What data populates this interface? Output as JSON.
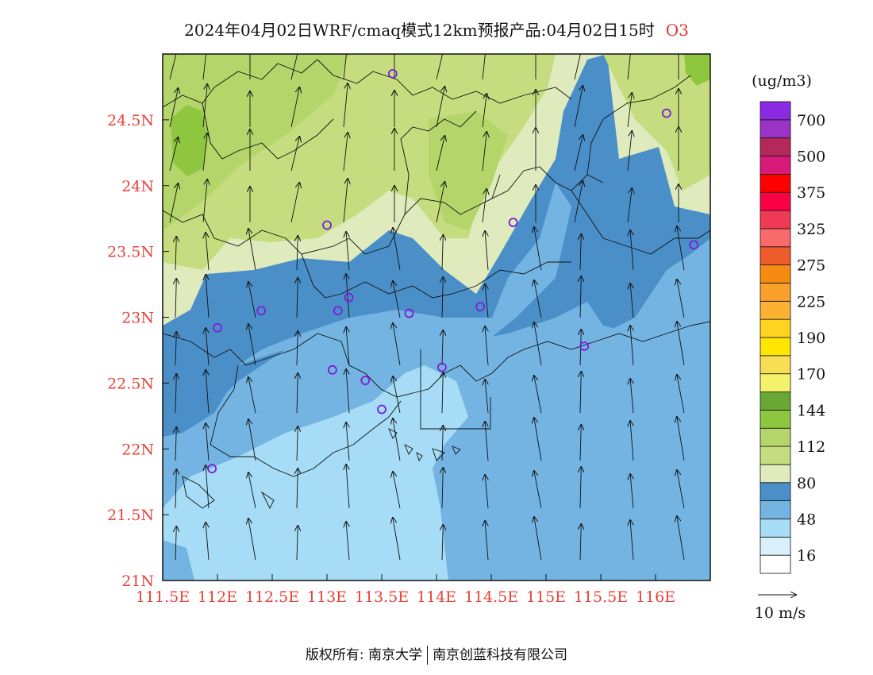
{
  "title": {
    "text": "2024年04月02日WRF/cmaq模式12km预报产品:04月02日15时",
    "species": "O3"
  },
  "axes": {
    "lon_labels": [
      "111.5E",
      "112E",
      "112.5E",
      "113E",
      "113.5E",
      "114E",
      "114.5E",
      "115E",
      "115.5E",
      "116E"
    ],
    "lat_labels": [
      "21N",
      "21.5N",
      "22N",
      "22.5N",
      "23N",
      "23.5N",
      "24N",
      "24.5N"
    ],
    "lon_range": [
      111.5,
      116.5
    ],
    "lat_range": [
      21.0,
      25.0
    ]
  },
  "colorbar": {
    "unit": "(ug/m3)",
    "labels": [
      "16",
      "48",
      "80",
      "112",
      "144",
      "170",
      "190",
      "225",
      "275",
      "325",
      "375",
      "500",
      "700"
    ],
    "colors": [
      "#ffffff",
      "#d9effa",
      "#a6dcf5",
      "#74b4e2",
      "#4b8fc8",
      "#dfeabd",
      "#c5dd7e",
      "#b3d56a",
      "#8ec63f",
      "#6aa835",
      "#f2f26c",
      "#f8de52",
      "#ffe600",
      "#ffd31f",
      "#fbb233",
      "#f9a12b",
      "#f58b10",
      "#ef5c2b",
      "#f96b6b",
      "#f03a55",
      "#fa0044",
      "#ff0000",
      "#d91a78",
      "#b5295a",
      "#9b33c7",
      "#8a2be2"
    ]
  },
  "wind_legend": {
    "label": "10 m/s"
  },
  "stations": [
    {
      "lon": 113.6,
      "lat": 24.85
    },
    {
      "lon": 116.1,
      "lat": 24.55
    },
    {
      "lon": 113.0,
      "lat": 23.7
    },
    {
      "lon": 114.7,
      "lat": 23.72
    },
    {
      "lon": 116.35,
      "lat": 23.55
    },
    {
      "lon": 112.0,
      "lat": 22.92
    },
    {
      "lon": 112.4,
      "lat": 23.05
    },
    {
      "lon": 113.1,
      "lat": 23.05
    },
    {
      "lon": 113.2,
      "lat": 23.15
    },
    {
      "lon": 113.75,
      "lat": 23.03
    },
    {
      "lon": 114.4,
      "lat": 23.08
    },
    {
      "lon": 115.35,
      "lat": 22.78
    },
    {
      "lon": 113.05,
      "lat": 22.6
    },
    {
      "lon": 113.35,
      "lat": 22.52
    },
    {
      "lon": 114.05,
      "lat": 22.62
    },
    {
      "lon": 113.5,
      "lat": 22.3
    },
    {
      "lon": 111.95,
      "lat": 21.85
    }
  ],
  "copyright": {
    "left": "版权所有: 南京大学",
    "right": "南京创蓝科技有限公司"
  }
}
